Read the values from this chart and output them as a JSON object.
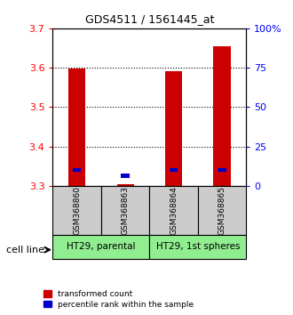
{
  "title": "GDS4511 / 1561445_at",
  "samples": [
    "GSM368860",
    "GSM368863",
    "GSM368864",
    "GSM368865"
  ],
  "group_labels": [
    "HT29, parental",
    "HT29, 1st spheres"
  ],
  "group_color": "#90ee90",
  "red_values": [
    3.598,
    3.305,
    3.592,
    3.655
  ],
  "blue_values": [
    3.335,
    3.32,
    3.335,
    3.335
  ],
  "ylim": [
    3.3,
    3.7
  ],
  "yticks_left": [
    3.3,
    3.4,
    3.5,
    3.6,
    3.7
  ],
  "yticks_right": [
    0,
    25,
    50,
    75,
    100
  ],
  "ytick_right_labels": [
    "0",
    "25",
    "50",
    "75",
    "100%"
  ],
  "bar_width": 0.35,
  "red_color": "#cc0000",
  "blue_color": "#0000cc",
  "legend_red": "transformed count",
  "legend_blue": "percentile rank within the sample",
  "cell_line_label": "cell line",
  "bg_color": "#cccccc",
  "plot_bg": "#ffffff"
}
